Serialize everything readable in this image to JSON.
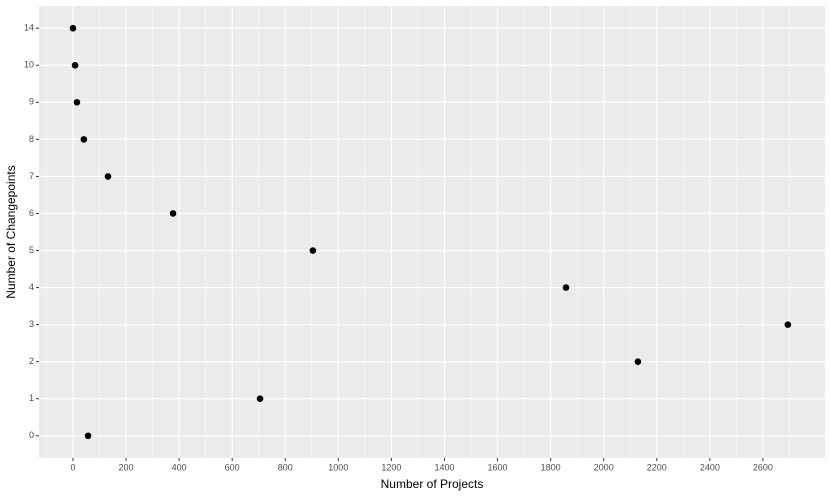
{
  "chart_data": {
    "type": "scatter",
    "x_label": "Number of Projects",
    "y_label": "Number of Changepoints",
    "x": [
      0,
      8,
      15,
      41,
      132,
      377,
      904,
      1858,
      2694,
      2129,
      705,
      57
    ],
    "values": [
      14,
      10,
      9,
      8,
      7,
      6,
      5,
      4,
      3,
      2,
      1,
      0
    ],
    "ycategories": [
      0,
      1,
      2,
      3,
      4,
      5,
      6,
      7,
      8,
      9,
      10,
      14
    ],
    "color": "#000000",
    "xlim": [
      -128,
      2834
    ],
    "xticks": [
      0,
      200,
      400,
      600,
      800,
      1000,
      1200,
      1400,
      1600,
      1800,
      2000,
      2200,
      2400,
      2600
    ],
    "grid": true
  }
}
